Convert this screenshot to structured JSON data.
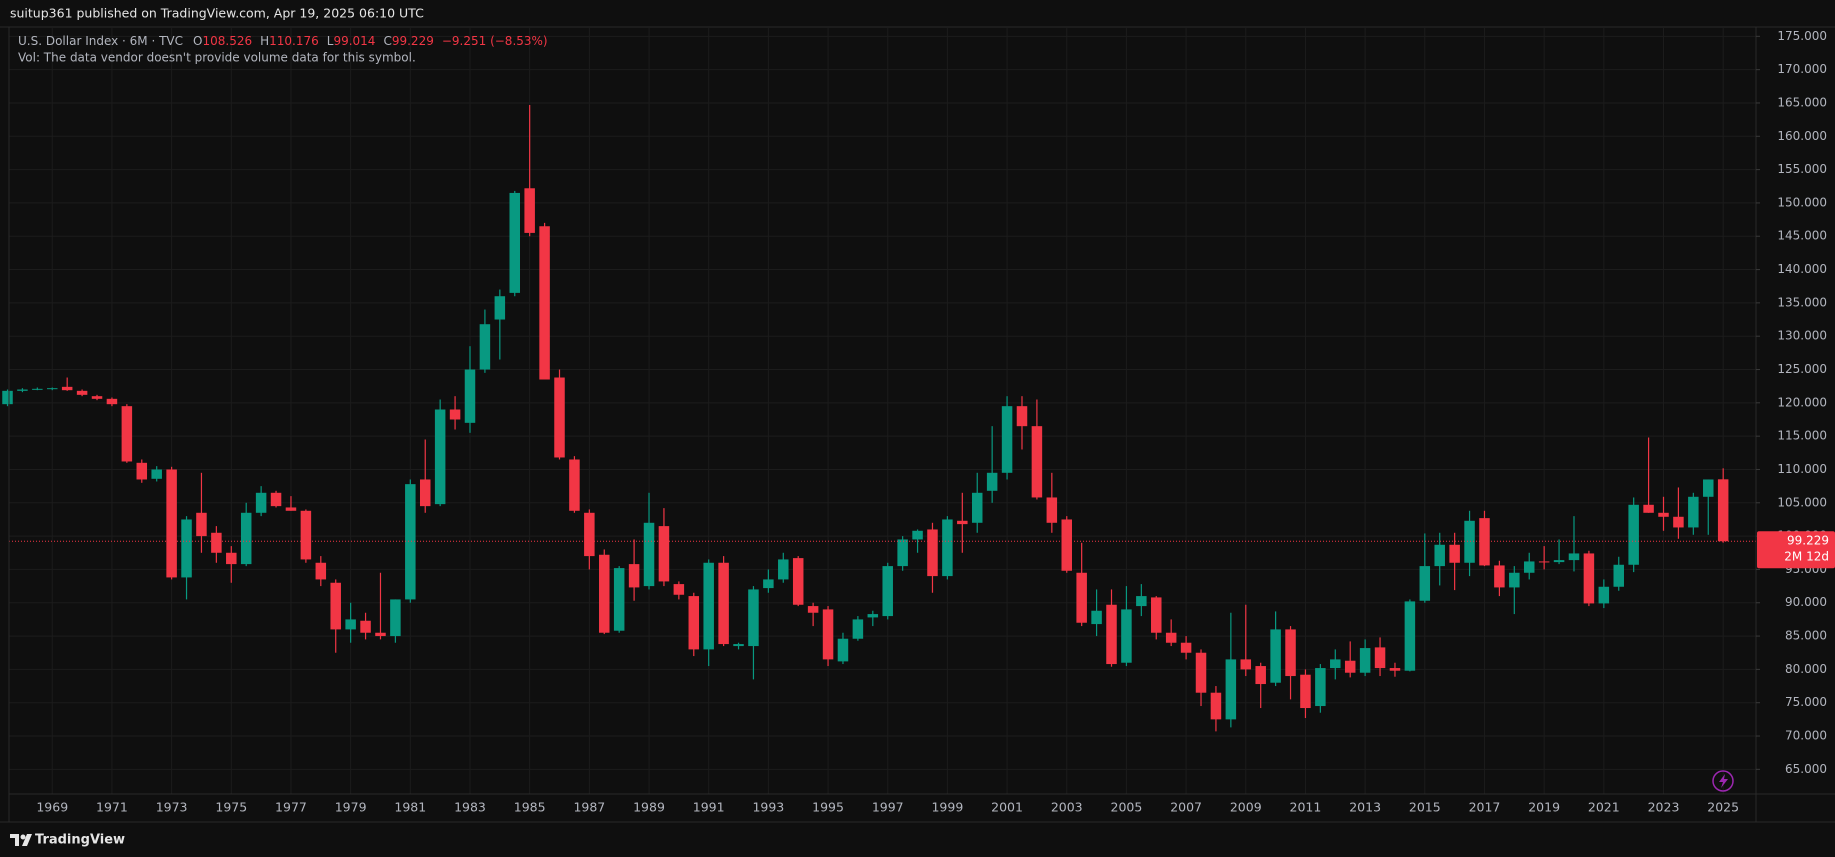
{
  "header": {
    "published": "suitup361 published on TradingView.com, Apr 19, 2025 06:10 UTC"
  },
  "footer": {
    "brand": "TradingView"
  },
  "chart_data": {
    "type": "candlestick",
    "title": "U.S. Dollar Index · 6M · TVC",
    "ohlc_prefixes": [
      "O",
      "H",
      "L",
      "C"
    ],
    "change": "−9.251 (−8.53%)",
    "volume_note": "Vol: The data vendor doesn't provide volume data for this symbol.",
    "countdown": "2M 12d",
    "up_color": "#089981",
    "down_color": "#f23645",
    "x": [
      1967.5,
      1968,
      1968.5,
      1969,
      1969.5,
      1970,
      1970.5,
      1971,
      1971.5,
      1972,
      1972.5,
      1973,
      1973.5,
      1974,
      1974.5,
      1975,
      1975.5,
      1976,
      1976.5,
      1977,
      1977.5,
      1978,
      1978.5,
      1979,
      1979.5,
      1980,
      1980.5,
      1981,
      1981.5,
      1982,
      1982.5,
      1983,
      1983.5,
      1984,
      1984.5,
      1985,
      1985.5,
      1986,
      1986.5,
      1987,
      1987.5,
      1988,
      1988.5,
      1989,
      1989.5,
      1990,
      1990.5,
      1991,
      1991.5,
      1992,
      1992.5,
      1993,
      1993.5,
      1994,
      1994.5,
      1995,
      1995.5,
      1996,
      1996.5,
      1997,
      1997.5,
      1998,
      1998.5,
      1999,
      1999.5,
      2000,
      2000.5,
      2001,
      2001.5,
      2002,
      2002.5,
      2003,
      2003.5,
      2004,
      2004.5,
      2005,
      2005.5,
      2006,
      2006.5,
      2007,
      2007.5,
      2008,
      2008.5,
      2009,
      2009.5,
      2010,
      2010.5,
      2011,
      2011.5,
      2012,
      2012.5,
      2013,
      2013.5,
      2014,
      2014.5,
      2015,
      2015.5,
      2016,
      2016.5,
      2017,
      2017.5,
      2018,
      2018.5,
      2019,
      2019.5,
      2020,
      2020.5,
      2021,
      2021.5,
      2022,
      2022.5,
      2023,
      2023.5,
      2024,
      2024.5,
      2025
    ],
    "open": [
      119.8,
      121.8,
      122,
      122.1,
      122.4,
      121.8,
      121,
      120.6,
      119.5,
      111,
      108.6,
      110,
      93.8,
      103.5,
      100.5,
      97.5,
      95.8,
      103.5,
      106.5,
      104.3,
      103.8,
      96,
      93,
      86,
      87.3,
      85.5,
      85,
      90.5,
      108.5,
      104.8,
      119,
      117,
      125,
      132.5,
      136.5,
      152.2,
      146.5,
      123.8,
      111.5,
      103.5,
      97.2,
      85.8,
      95.8,
      92.5,
      101.5,
      92.8,
      91,
      83,
      96,
      83.5,
      83.5,
      92.2,
      93.5,
      96.7,
      89.5,
      89,
      81.2,
      84.6,
      87.8,
      88,
      95.5,
      99.5,
      101,
      94,
      102.3,
      102,
      106.8,
      109.5,
      119.5,
      116.5,
      105.8,
      102.5,
      94.5,
      86.8,
      89.7,
      81,
      89.5,
      90.8,
      85.5,
      84,
      82.5,
      76.5,
      72.5,
      81.5,
      80.5,
      78,
      86,
      79.2,
      74.5,
      80.2,
      81.3,
      79.5,
      83.3,
      80.2,
      79.8,
      90.3,
      95.5,
      98.7,
      96,
      102.7,
      95.6,
      92.3,
      94.5,
      96.2,
      96.1,
      96.4,
      97.4,
      89.9,
      92.4,
      95.7,
      104.7,
      103.5,
      102.9,
      101.3,
      105.9,
      108.526
    ],
    "high": [
      122,
      122.2,
      122.3,
      122.3,
      123.8,
      122,
      121.2,
      120.8,
      119.8,
      111.5,
      110.5,
      110.4,
      103,
      109.5,
      101.5,
      98.5,
      105,
      107.5,
      106.8,
      106,
      104,
      97,
      93.5,
      90,
      88.5,
      94.5,
      90.5,
      108.5,
      114.5,
      120.5,
      121,
      128.5,
      134,
      137,
      151.8,
      164.7,
      147,
      125,
      112,
      104,
      98,
      95.5,
      99.5,
      106.5,
      104.2,
      93.2,
      91.5,
      96.5,
      97,
      84,
      92.5,
      95,
      97.5,
      97,
      90,
      89.5,
      85.5,
      88,
      88.8,
      96,
      100,
      101,
      102,
      103,
      106.5,
      109.5,
      116.5,
      121,
      121,
      120.5,
      109.5,
      103,
      99,
      92,
      92,
      92.5,
      92.8,
      91,
      87.5,
      85,
      83,
      77.5,
      88.5,
      89.7,
      81,
      88.7,
      86.5,
      80,
      80.8,
      83,
      84.2,
      84.5,
      84.8,
      81,
      90.5,
      100.4,
      100.5,
      100.5,
      103.8,
      103.8,
      96.3,
      95.5,
      97.5,
      98.5,
      99.5,
      103,
      97.8,
      93.5,
      96.9,
      105.8,
      114.8,
      105.9,
      107.3,
      106.5,
      108.5,
      110.176
    ],
    "low": [
      119.5,
      121.6,
      121.9,
      121.9,
      121.8,
      121,
      120.4,
      119.5,
      111,
      108,
      108.2,
      93.5,
      90.5,
      97.5,
      96,
      93,
      95.5,
      103,
      104.3,
      103.8,
      96,
      92.5,
      82.5,
      84,
      84.5,
      84.5,
      84,
      90,
      103.5,
      104.5,
      116,
      115.5,
      124.5,
      126.5,
      136,
      145,
      123.5,
      111.5,
      103.5,
      95,
      85.3,
      85.5,
      90.3,
      92,
      92.5,
      90.5,
      82,
      80.5,
      83.5,
      83,
      78.5,
      91.5,
      93,
      89.5,
      86.5,
      80.5,
      80.8,
      84.3,
      86.5,
      87.5,
      94.8,
      97.5,
      91.5,
      93.5,
      97.5,
      100.5,
      105,
      108.5,
      113,
      105.5,
      100.5,
      94.5,
      86.5,
      85,
      80.4,
      80.5,
      88,
      84.5,
      83.5,
      81.5,
      74.5,
      70.7,
      71.3,
      79,
      74.2,
      77.5,
      75.5,
      72.7,
      73.5,
      78.5,
      78.8,
      79,
      79,
      78.9,
      79.7,
      90,
      92.6,
      91.9,
      94,
      95.5,
      91,
      88.3,
      93.5,
      95,
      95.8,
      94.7,
      89.5,
      89.2,
      91.8,
      94.6,
      103.5,
      100.8,
      99.6,
      100.2,
      100.2,
      99.014
    ],
    "close": [
      121.8,
      122,
      122.1,
      122.2,
      121.9,
      121.2,
      120.6,
      119.8,
      111.2,
      108.5,
      110,
      93.8,
      102.5,
      100,
      97.5,
      95.8,
      103.5,
      106.5,
      104.5,
      103.8,
      96.5,
      93.5,
      86,
      87.5,
      85.5,
      85,
      90.5,
      107.8,
      104.5,
      119,
      117.5,
      125,
      131.8,
      136,
      151.5,
      145.5,
      123.5,
      111.8,
      103.8,
      97,
      85.5,
      95.2,
      92.3,
      102,
      93.2,
      91.2,
      83,
      96,
      83.8,
      83.8,
      92,
      93.5,
      96.5,
      89.7,
      88.5,
      81.5,
      84.6,
      87.5,
      88.3,
      95.5,
      99.5,
      100.8,
      94,
      102.5,
      101.8,
      106.5,
      109.5,
      119.5,
      116.5,
      105.8,
      102,
      94.8,
      87,
      88.8,
      80.8,
      89,
      91,
      85.5,
      84,
      82.5,
      76.5,
      72.5,
      81.5,
      80,
      77.8,
      86,
      79,
      74.2,
      80.2,
      81.5,
      79.5,
      83.2,
      80.2,
      79.8,
      90.2,
      95.5,
      98.7,
      96,
      102.3,
      95.6,
      92.3,
      94.5,
      96.2,
      96.1,
      96.4,
      97.4,
      89.9,
      92.4,
      95.7,
      104.7,
      103.5,
      102.9,
      101.3,
      105.9,
      108.5,
      99.229
    ],
    "xlim": [
      1967.55,
      2026.1
    ],
    "xticks": [
      1969,
      1971,
      1973,
      1975,
      1977,
      1979,
      1981,
      1983,
      1985,
      1987,
      1989,
      1991,
      1993,
      1995,
      1997,
      1999,
      2001,
      2003,
      2005,
      2007,
      2009,
      2011,
      2013,
      2015,
      2017,
      2019,
      2021,
      2023,
      2025
    ],
    "ylim": [
      61.3,
      176.4
    ],
    "yticks": [
      {
        "value": 65,
        "label": "65.000"
      },
      {
        "value": 70,
        "label": "70.000"
      },
      {
        "value": 75,
        "label": "75.000"
      },
      {
        "value": 80,
        "label": "80.000"
      },
      {
        "value": 85,
        "label": "85.000"
      },
      {
        "value": 90,
        "label": "90.000"
      },
      {
        "value": 95,
        "label": "95.000"
      },
      {
        "value": 100,
        "label": "100.000"
      },
      {
        "value": 105,
        "label": "105.000"
      },
      {
        "value": 110,
        "label": "110.000"
      },
      {
        "value": 115,
        "label": "115.000"
      },
      {
        "value": 120,
        "label": "120.000"
      },
      {
        "value": 125,
        "label": "125.000"
      },
      {
        "value": 130,
        "label": "130.000"
      },
      {
        "value": 135,
        "label": "135.000"
      },
      {
        "value": 140,
        "label": "140.000"
      },
      {
        "value": 145,
        "label": "145.000"
      },
      {
        "value": 150,
        "label": "150.000"
      },
      {
        "value": 155,
        "label": "155.000"
      },
      {
        "value": 160,
        "label": "160.000"
      },
      {
        "value": 165,
        "label": "165.000"
      },
      {
        "value": 170,
        "label": "170.000"
      },
      {
        "value": 175,
        "label": "175.000"
      }
    ],
    "grid": true
  }
}
